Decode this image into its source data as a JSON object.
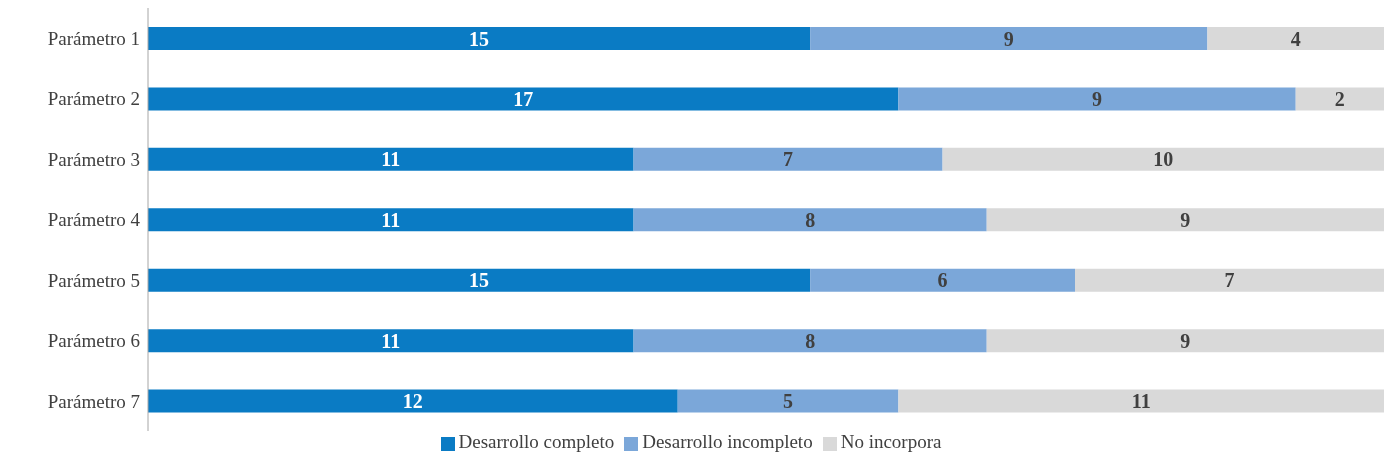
{
  "chart_data": {
    "type": "bar",
    "orientation": "horizontal",
    "stacked": true,
    "data_labels": true,
    "legend": "bottom",
    "grid": false,
    "categories": [
      "Parámetro 1",
      "Parámetro 2",
      "Parámetro 3",
      "Parámetro 4",
      "Parámetro 5",
      "Parámetro 6",
      "Parámetro 7"
    ],
    "series": [
      {
        "name": "Desarrollo completo",
        "color": "#0a7bc4",
        "values": [
          15,
          17,
          11,
          11,
          15,
          11,
          12
        ]
      },
      {
        "name": "Desarrollo incompleto",
        "color": "#7ba7d9",
        "values": [
          9,
          9,
          7,
          8,
          6,
          8,
          5
        ]
      },
      {
        "name": "No incorpora",
        "color": "#d9d9d9",
        "values": [
          4,
          2,
          10,
          9,
          7,
          9,
          11
        ]
      }
    ]
  }
}
